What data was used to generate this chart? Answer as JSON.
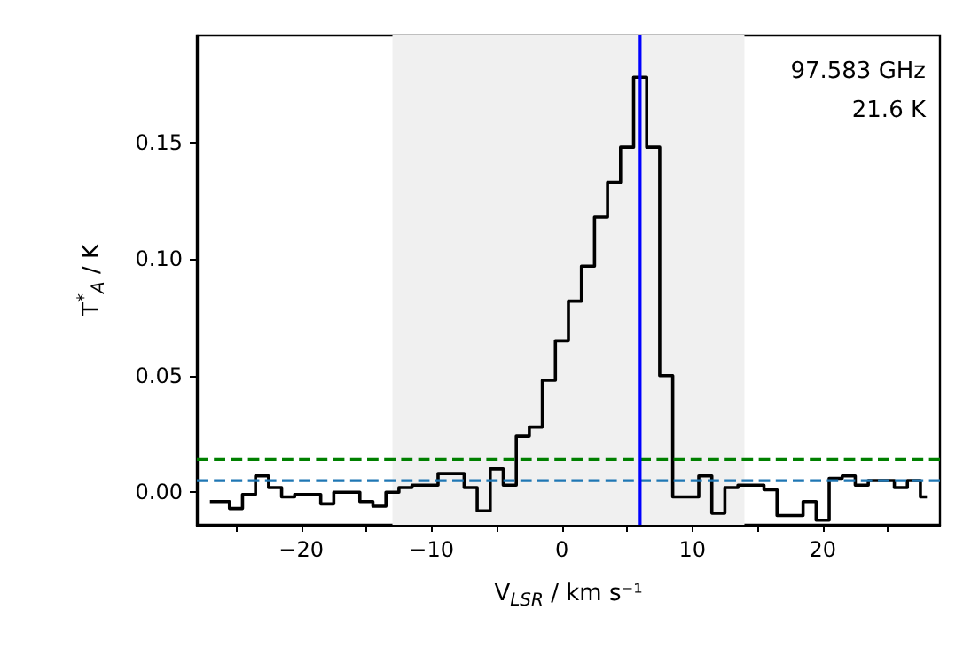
{
  "chart_data": {
    "type": "step",
    "xlabel": "V$_{LSR}$ / km s⁻¹",
    "ylabel": "T$^{*}$$_{A}$ / K",
    "annotations": [
      "97.583 GHz",
      "21.6 K"
    ],
    "x": [
      -27,
      -26,
      -25,
      -24,
      -23,
      -22,
      -21,
      -20,
      -19,
      -18,
      -17,
      -16,
      -15,
      -14,
      -13,
      -12,
      -11,
      -10,
      -9,
      -8,
      -7,
      -6,
      -5,
      -4,
      -3,
      -2,
      -1,
      0,
      1,
      2,
      3,
      4,
      5,
      6,
      7,
      8,
      9,
      10,
      11,
      12,
      13,
      14,
      15,
      16,
      17,
      18,
      19,
      20,
      21,
      22,
      23,
      24,
      25,
      26,
      27,
      28
    ],
    "series": [
      {
        "color": "#000000",
        "values": [
          -0.004,
          -0.004,
          -0.007,
          -0.001,
          0.007,
          0.002,
          -0.002,
          -0.001,
          -0.001,
          -0.005,
          0.0,
          0.0,
          -0.004,
          -0.006,
          0.0,
          0.002,
          0.003,
          0.003,
          0.008,
          0.008,
          0.002,
          -0.008,
          0.01,
          0.003,
          0.024,
          0.028,
          0.048,
          0.065,
          0.082,
          0.097,
          0.118,
          0.133,
          0.148,
          0.178,
          0.148,
          0.05,
          -0.002,
          -0.002,
          0.007,
          -0.009,
          0.002,
          0.003,
          0.003,
          0.001,
          -0.01,
          -0.01,
          -0.004,
          -0.012,
          0.006,
          0.007,
          0.003,
          0.005,
          0.005,
          0.002,
          0.005,
          -0.002
        ]
      }
    ],
    "xlim": [
      -28,
      29
    ],
    "xticks": [
      {
        "value": -25,
        "label": null
      },
      {
        "value": -20,
        "label": "−20"
      },
      {
        "value": -15,
        "label": null
      },
      {
        "value": -10,
        "label": "−10"
      },
      {
        "value": -5,
        "label": null
      },
      {
        "value": 0,
        "label": "0"
      },
      {
        "value": 5,
        "label": null
      },
      {
        "value": 10,
        "label": "10"
      },
      {
        "value": 15,
        "label": null
      },
      {
        "value": 20,
        "label": "20"
      },
      {
        "value": 25,
        "label": null
      }
    ],
    "ylim": [
      -0.014,
      0.196
    ],
    "yticks": [
      {
        "value": 0,
        "label": "0.00"
      },
      {
        "value": 0.05,
        "label": "0.05"
      },
      {
        "value": 0.1,
        "label": "0.10"
      },
      {
        "value": 0.15,
        "label": "0.15"
      }
    ],
    "ref_lines": [
      {
        "axis": "y",
        "value": 0.014,
        "color": "#008000",
        "line_style": "dashed"
      },
      {
        "axis": "y",
        "value": 0.005,
        "color": "#1f77b4",
        "line_style": "dashed"
      },
      {
        "axis": "x",
        "value": 6,
        "color": "#0000ff",
        "line_style": "solid"
      }
    ],
    "bands": [
      {
        "axis": "x",
        "from": -13,
        "to": 14,
        "color": "#f0f0f0"
      }
    ],
    "grid": false,
    "marker": "none",
    "line_style": "solid"
  }
}
